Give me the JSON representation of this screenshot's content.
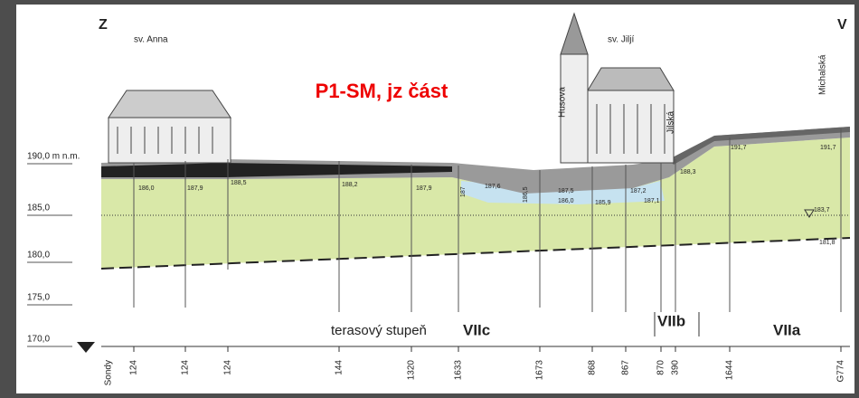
{
  "header": {
    "left_direction": "Z",
    "right_direction": "V",
    "title": "P1-SM,  jz část"
  },
  "landmarks": [
    "sv. Anna",
    "sv. Jiljí"
  ],
  "streets": [
    "Husova",
    "Jilská",
    "Michalská"
  ],
  "elevation_labels": [
    "190,0 m n.m.",
    "185,0",
    "180,0",
    "175,0",
    "170,0"
  ],
  "terraces": {
    "label": "terasový stupeň",
    "levels": [
      "VIIc",
      "VIIb",
      "VIIa"
    ]
  },
  "boreholes": {
    "label": "Sondy",
    "ids": [
      "124",
      "124",
      "124",
      "144",
      "1320",
      "1633",
      "1673",
      "868",
      "867",
      "870",
      "390",
      "1644",
      "G774"
    ]
  },
  "measurements": [
    "186,0",
    "187,9",
    "188,5",
    "188,2",
    "187,9",
    "187",
    "187,6",
    "186,5",
    "187,5",
    "186,0",
    "185,9",
    "187,2",
    "187,1",
    "188,3",
    "191,7",
    "191,7",
    "183,7",
    "181,8"
  ]
}
